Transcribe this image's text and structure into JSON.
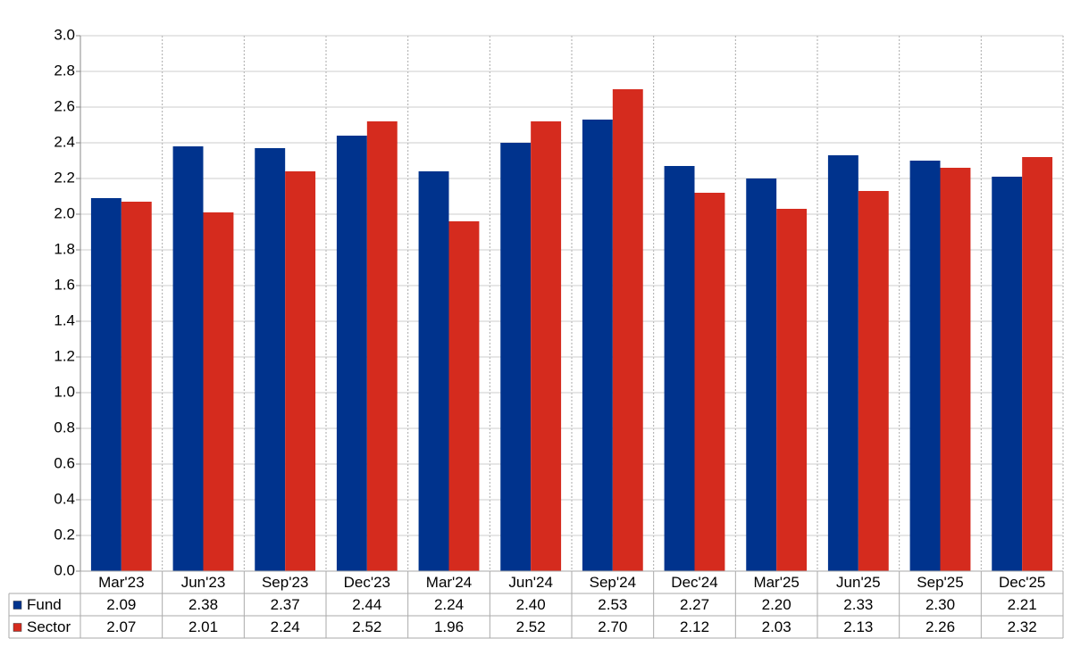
{
  "chart_data": {
    "type": "bar",
    "categories": [
      "Mar'23",
      "Jun'23",
      "Sep'23",
      "Dec'23",
      "Mar'24",
      "Jun'24",
      "Sep'24",
      "Dec'24",
      "Mar'25",
      "Jun'25",
      "Sep'25",
      "Dec'25"
    ],
    "series": [
      {
        "name": "Fund",
        "color": "#00338d",
        "values": [
          2.09,
          2.38,
          2.37,
          2.44,
          2.24,
          2.4,
          2.53,
          2.27,
          2.2,
          2.33,
          2.3,
          2.21
        ],
        "value_labels": [
          "2.09",
          "2.38",
          "2.37",
          "2.44",
          "2.24",
          "2.40",
          "2.53",
          "2.27",
          "2.20",
          "2.33",
          "2.30",
          "2.21"
        ]
      },
      {
        "name": "Sector",
        "color": "#d52b1e",
        "values": [
          2.07,
          2.01,
          2.24,
          2.52,
          1.96,
          2.52,
          2.7,
          2.12,
          2.03,
          2.13,
          2.26,
          2.32
        ],
        "value_labels": [
          "2.07",
          "2.01",
          "2.24",
          "2.52",
          "1.96",
          "2.52",
          "2.70",
          "2.12",
          "2.03",
          "2.13",
          "2.26",
          "2.32"
        ]
      }
    ],
    "ylim": [
      0,
      3
    ],
    "yticks": [
      {
        "value": 0,
        "label": "0.0"
      },
      0.2,
      0.4,
      0.6,
      0.8,
      {
        "value": 1,
        "label": "1.0"
      },
      1.2,
      1.4,
      1.6,
      1.8,
      {
        "value": 2,
        "label": "2.0"
      },
      2.2,
      2.4,
      2.6,
      2.8,
      {
        "value": 3,
        "label": "3.0"
      }
    ],
    "grid": true
  }
}
